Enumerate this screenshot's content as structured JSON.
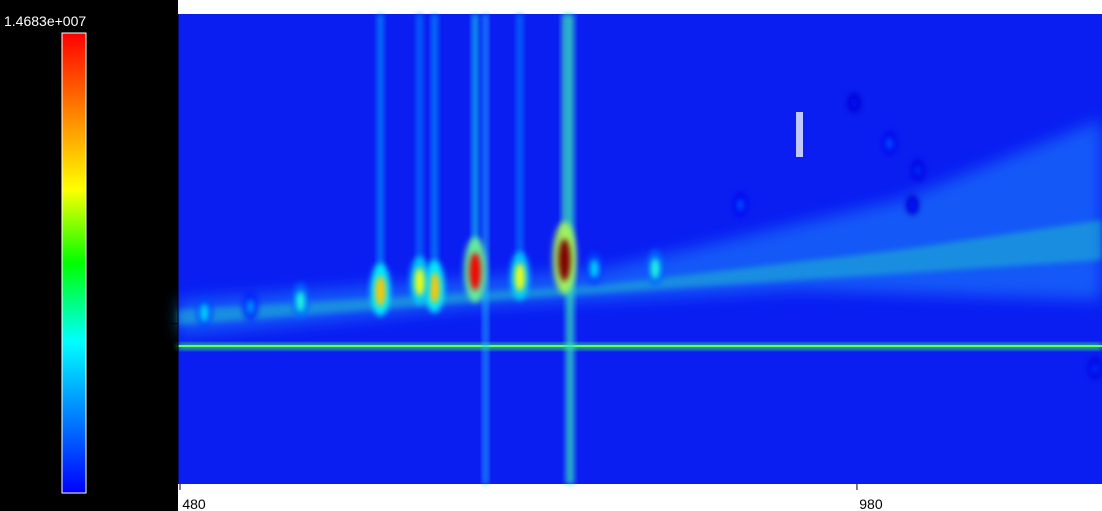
{
  "chart_data": {
    "type": "heatmap",
    "colormap": "jet",
    "xlim": [
      478.5,
      1161
    ],
    "xticks": [
      480,
      980
    ],
    "ylim": [
      -0.02,
      2.97
    ],
    "yticks": [
      0,
      1,
      2
    ],
    "zlim": [
      0,
      14683000
    ],
    "zticks": [
      0,
      {
        "value": 14683000,
        "label": "1.4683e+007"
      }
    ],
    "x": [
      764,
      698,
      731,
      668,
      657,
      628,
      569,
      498,
      532,
      831,
      786,
      894,
      1004,
      1025,
      978,
      1021,
      1156
    ],
    "y": [
      1.38,
      1.31,
      1.28,
      1.21,
      1.25,
      1.19,
      1.13,
      1.06,
      1.1,
      1.34,
      1.34,
      1.75,
      2.14,
      1.97,
      2.4,
      1.75,
      0.71
    ],
    "values": [
      14683000,
      13000000,
      9000000,
      10000000,
      9000000,
      10000000,
      6000000,
      5000000,
      4000000,
      6000000,
      5000000,
      3000000,
      3000000,
      2500000,
      2000000,
      2000000,
      2500000
    ]
  }
}
